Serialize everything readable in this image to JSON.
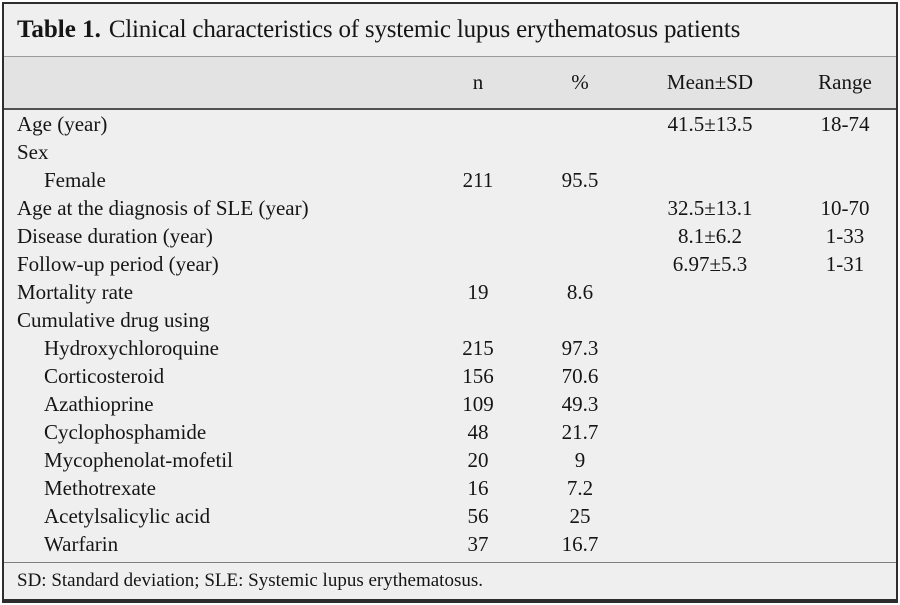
{
  "colors": {
    "content_bg": "#efefef",
    "header_band_bg": "#e3e3e3",
    "frame": "#2d2d2d",
    "text": "#151515",
    "rule_light": "#9b9b9b",
    "rule_dark": "#515151",
    "footnote_rule": "#7e7e7e"
  },
  "title": {
    "label": "Table 1.",
    "text": "Clinical characteristics of systemic lupus erythematosus patients"
  },
  "table": {
    "columns": [
      "",
      "n",
      "%",
      "Mean±SD",
      "Range"
    ],
    "rows": [
      {
        "label": "Age (year)",
        "indent": false,
        "n": "",
        "pct": "",
        "mean": "41.5±13.5",
        "range": "18-74"
      },
      {
        "label": "Sex",
        "indent": false,
        "n": "",
        "pct": "",
        "mean": "",
        "range": ""
      },
      {
        "label": "Female",
        "indent": true,
        "n": "211",
        "pct": "95.5",
        "mean": "",
        "range": ""
      },
      {
        "label": "Age at the diagnosis of SLE (year)",
        "indent": false,
        "n": "",
        "pct": "",
        "mean": "32.5±13.1",
        "range": "10-70"
      },
      {
        "label": "Disease duration (year)",
        "indent": false,
        "n": "",
        "pct": "",
        "mean": "8.1±6.2",
        "range": "1-33"
      },
      {
        "label": "Follow-up period (year)",
        "indent": false,
        "n": "",
        "pct": "",
        "mean": "6.97±5.3",
        "range": "1-31"
      },
      {
        "label": "Mortality rate",
        "indent": false,
        "n": "19",
        "pct": "8.6",
        "mean": "",
        "range": ""
      },
      {
        "label": "Cumulative drug using",
        "indent": false,
        "n": "",
        "pct": "",
        "mean": "",
        "range": ""
      },
      {
        "label": "Hydroxychloroquine",
        "indent": true,
        "n": "215",
        "pct": "97.3",
        "mean": "",
        "range": ""
      },
      {
        "label": "Corticosteroid",
        "indent": true,
        "n": "156",
        "pct": "70.6",
        "mean": "",
        "range": ""
      },
      {
        "label": "Azathioprine",
        "indent": true,
        "n": "109",
        "pct": "49.3",
        "mean": "",
        "range": ""
      },
      {
        "label": "Cyclophosphamide",
        "indent": true,
        "n": "48",
        "pct": "21.7",
        "mean": "",
        "range": ""
      },
      {
        "label": "Mycophenolat-mofetil",
        "indent": true,
        "n": "20",
        "pct": "9",
        "mean": "",
        "range": ""
      },
      {
        "label": "Methotrexate",
        "indent": true,
        "n": "16",
        "pct": "7.2",
        "mean": "",
        "range": ""
      },
      {
        "label": "Acetylsalicylic acid",
        "indent": true,
        "n": "56",
        "pct": "25",
        "mean": "",
        "range": ""
      },
      {
        "label": "Warfarin",
        "indent": true,
        "n": "37",
        "pct": "16.7",
        "mean": "",
        "range": ""
      }
    ]
  },
  "footnote": "SD: Standard deviation; SLE: Systemic lupus erythematosus."
}
